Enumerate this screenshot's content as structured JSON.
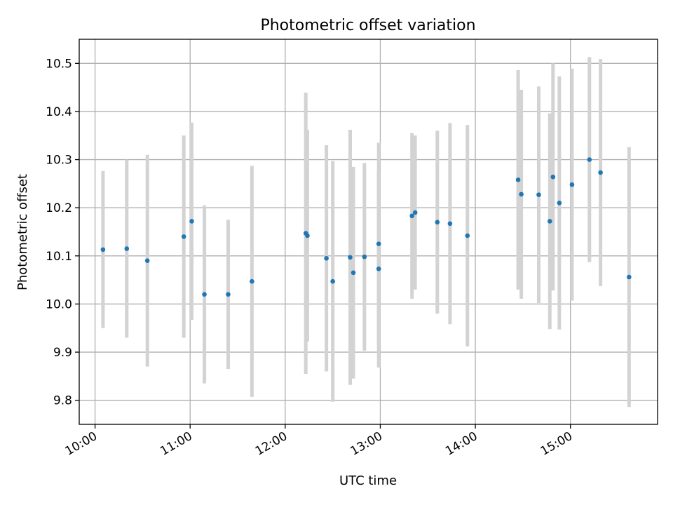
{
  "chart_data": {
    "type": "scatter",
    "title": "Photometric offset variation",
    "xlabel": "UTC time",
    "ylabel": "Photometric offset",
    "x_ticks": [
      "10:00",
      "11:00",
      "12:00",
      "13:00",
      "14:00",
      "15:00"
    ],
    "x_ticks_hours": [
      10,
      11,
      12,
      13,
      14,
      15
    ],
    "y_ticks": [
      "9.8",
      "9.9",
      "10.0",
      "10.1",
      "10.2",
      "10.3",
      "10.4",
      "10.5"
    ],
    "y_ticks_values": [
      9.8,
      9.9,
      10.0,
      10.1,
      10.2,
      10.3,
      10.4,
      10.5
    ],
    "xlim": [
      "09:50",
      "15:55"
    ],
    "ylim": [
      9.75,
      10.55
    ],
    "grid": true,
    "colors": {
      "points": "#1f77b4",
      "error_bars": "#d3d3d3"
    },
    "points": [
      {
        "time": "10:05",
        "value": 10.113,
        "err": 0.163
      },
      {
        "time": "10:20",
        "value": 10.115,
        "err": 0.185
      },
      {
        "time": "10:33",
        "value": 10.09,
        "err": 0.22
      },
      {
        "time": "10:56",
        "value": 10.14,
        "err": 0.21
      },
      {
        "time": "11:01",
        "value": 10.172,
        "err": 0.205
      },
      {
        "time": "11:09",
        "value": 10.02,
        "err": 0.185
      },
      {
        "time": "11:24",
        "value": 10.02,
        "err": 0.155
      },
      {
        "time": "11:39",
        "value": 10.047,
        "err": 0.24
      },
      {
        "time": "12:13",
        "value": 10.147,
        "err": 0.292
      },
      {
        "time": "12:14",
        "value": 10.142,
        "err": 0.22
      },
      {
        "time": "12:26",
        "value": 10.095,
        "err": 0.235
      },
      {
        "time": "12:30",
        "value": 10.047,
        "err": 0.25
      },
      {
        "time": "12:41",
        "value": 10.097,
        "err": 0.265
      },
      {
        "time": "12:43",
        "value": 10.065,
        "err": 0.22
      },
      {
        "time": "12:50",
        "value": 10.098,
        "err": 0.195
      },
      {
        "time": "12:59",
        "value": 10.073,
        "err": 0.205
      },
      {
        "time": "12:59",
        "value": 10.125,
        "err": 0.21
      },
      {
        "time": "13:20",
        "value": 10.183,
        "err": 0.172
      },
      {
        "time": "13:22",
        "value": 10.19,
        "err": 0.16
      },
      {
        "time": "13:36",
        "value": 10.17,
        "err": 0.19
      },
      {
        "time": "13:44",
        "value": 10.167,
        "err": 0.209
      },
      {
        "time": "13:55",
        "value": 10.142,
        "err": 0.23
      },
      {
        "time": "14:27",
        "value": 10.258,
        "err": 0.228
      },
      {
        "time": "14:29",
        "value": 10.228,
        "err": 0.217
      },
      {
        "time": "14:40",
        "value": 10.227,
        "err": 0.225
      },
      {
        "time": "14:47",
        "value": 10.172,
        "err": 0.224
      },
      {
        "time": "14:49",
        "value": 10.264,
        "err": 0.236
      },
      {
        "time": "14:53",
        "value": 10.21,
        "err": 0.263
      },
      {
        "time": "15:01",
        "value": 10.248,
        "err": 0.241
      },
      {
        "time": "15:12",
        "value": 10.3,
        "err": 0.213
      },
      {
        "time": "15:19",
        "value": 10.273,
        "err": 0.236
      },
      {
        "time": "15:37",
        "value": 10.056,
        "err": 0.27
      }
    ]
  }
}
